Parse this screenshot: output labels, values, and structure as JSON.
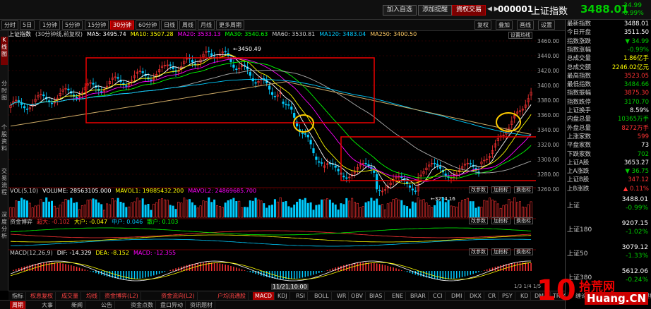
{
  "toolbar": {
    "add_watch": "加入自选",
    "add_alert": "添加提醒",
    "cash_trade": "資权交易",
    "code": "000001",
    "name": "上证指数",
    "price": "3488.01",
    "change": "-34.99",
    "change_pct": "-0.99%"
  },
  "periods": [
    "分时",
    "5日",
    "1分钟",
    "5分钟",
    "15分钟",
    "30分钟",
    "60分钟",
    "日线",
    "周线",
    "月线",
    "更多周期"
  ],
  "active_period": "30分钟",
  "tools": [
    "复权",
    "叠加",
    "画线",
    "设置"
  ],
  "left_bar": [
    "K线图",
    "分时图",
    "个股资料",
    "交易流程",
    "深度分析"
  ],
  "ma_line": {
    "title": "上证指数",
    "mode": "(30分钟线,前复权)",
    "ma5": "MA5: 3495.74",
    "ma10": "MA10: 3507.28",
    "ma20": "MA20: 3533.13",
    "ma30": "MA30: 3540.63",
    "ma60": "MA60: 3530.81",
    "ma120": "MA120: 3483.04",
    "ma250": "MA250: 3400.50"
  },
  "price_axis": [
    "3460.00",
    "3440.00",
    "3420.00",
    "3400.00",
    "3380.00",
    "3360.00",
    "3340.00",
    "3320.00",
    "3300.00",
    "3280.00",
    "3260.00"
  ],
  "chart_labels": {
    "high": "3450.49",
    "low": "3254.16",
    "settings": "设置均线"
  },
  "vol_line": {
    "title": "VOL(5,10)",
    "volume": "VOLUME: 28563105.000",
    "mavol1": "MAVOL1: 19885432.200",
    "mavol2": "MAVOL2: 24869685.700"
  },
  "flow_line": {
    "title": "资金博弈",
    "super": "超大: -0.102",
    "large": "大户: -0.047",
    "mid": "中户: 0.046",
    "small": "散户: 0.103"
  },
  "macd_line": {
    "title": "MACD(12,26,9)",
    "dif": "DIF: -14.329",
    "dea": "DEA: -8.152",
    "macd": "MACD: -12.355"
  },
  "panel_btns": [
    "改参数",
    "加指标",
    "换指标"
  ],
  "date_cursor": "11/21,10:00",
  "bottom_tabs": [
    "指标",
    "权息复权",
    "成交量",
    "均线",
    "资金博弈(L2)",
    "资金流向(L2)",
    "户均流通股",
    "MACD",
    "KDJ",
    "RSI",
    "BOLL",
    "WR",
    "OBV",
    "BIAS",
    "ENE",
    "BRAR",
    "CCI",
    "DMI",
    "DKX",
    "CR",
    "PSY",
    "KD",
    "DMA",
    "TRIX",
    "缠论成交量",
    "更多指标",
    "模板"
  ],
  "bottom_tabs2": [
    "周期",
    "大事",
    "新闻",
    "公告",
    "资金点数",
    "盘口异动",
    "资讯题材"
  ],
  "page_indicator": "1/3 1/4 1/5",
  "right_rows": [
    {
      "k": "最新指数",
      "v": "3488.01",
      "c": "#fff"
    },
    {
      "k": "今日开盘",
      "v": "3511.50",
      "c": "#fff"
    },
    {
      "k": "指数涨跌",
      "v": "▼ 34.99",
      "c": "#0c0"
    },
    {
      "k": "指数涨幅",
      "v": "-0.99%",
      "c": "#0c0"
    },
    {
      "k": "总成交量",
      "v": "1.86亿手",
      "c": "#ff0"
    },
    {
      "k": "总成交额",
      "v": "2246.02亿元",
      "c": "#ff0"
    },
    {
      "k": "最高指数",
      "v": "3523.05",
      "c": "#f33"
    },
    {
      "k": "最低指数",
      "v": "3484.66",
      "c": "#0c0"
    },
    {
      "k": "指数振幅",
      "v": "3875.30",
      "c": "#f33"
    },
    {
      "k": "指数跌停",
      "v": "3170.70",
      "c": "#0c0"
    },
    {
      "k": "上证换手",
      "v": "8.59%",
      "c": "#fff"
    },
    {
      "k": "内盘总量",
      "v": "10365万手",
      "c": "#0c0"
    },
    {
      "k": "外盘总量",
      "v": "8272万手",
      "c": "#f33"
    },
    {
      "k": "上涨家数",
      "v": "599",
      "c": "#f33"
    },
    {
      "k": "平盘家数",
      "v": "73",
      "c": "#fff"
    },
    {
      "k": "下跌家数",
      "v": "702",
      "c": "#0c0"
    },
    {
      "k": "上证A股",
      "v": "3653.27",
      "c": "#fff"
    },
    {
      "k": "上A涨跌",
      "v": "▼ 36.75",
      "c": "#0c0"
    },
    {
      "k": "上证B股",
      "v": "347.12",
      "c": "#f33"
    },
    {
      "k": "上B涨跌",
      "v": "▲ 0.11%",
      "c": "#f33"
    }
  ],
  "index_cards": [
    {
      "name": "上证",
      "v": "3488.01",
      "c": "-0.99%"
    },
    {
      "name": "上证180",
      "v": "9207.15",
      "c": "-1.02%"
    },
    {
      "name": "上证50",
      "v": "3079.12",
      "c": "-1.33%"
    },
    {
      "name": "上证380",
      "v": "5612.06",
      "c": "-0.24%"
    }
  ],
  "watermark": {
    "brand": "拾荒网",
    "url": "Huang.CN",
    "num": "10"
  }
}
